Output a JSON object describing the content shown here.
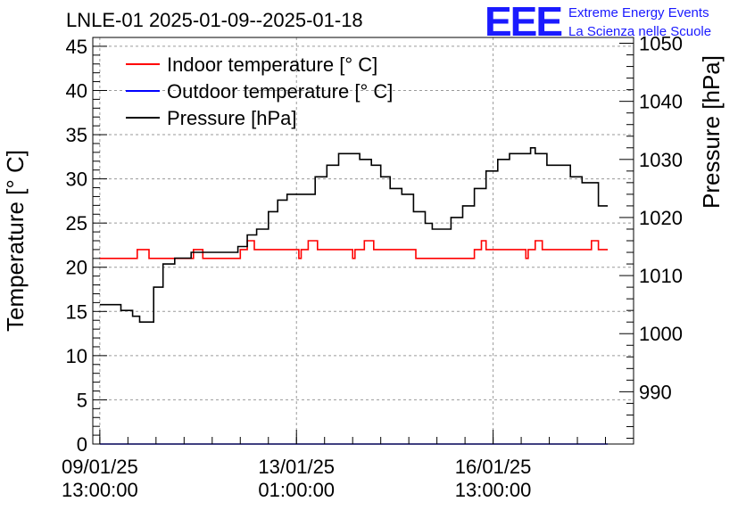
{
  "chart_data": {
    "type": "line",
    "title": "LNLE-01 2025-01-09--2025-01-18",
    "ylabel": "Temperature [° C]",
    "y2label": "Pressure [hPa]",
    "xlabel": "",
    "ylim": [
      0,
      46
    ],
    "y2lim": [
      981,
      1051
    ],
    "xlim": [
      "2025-01-09 10:00",
      "2025-01-19 01:00"
    ],
    "yticks": [
      0,
      5,
      10,
      15,
      20,
      25,
      30,
      35,
      40,
      45
    ],
    "y2ticks": [
      990,
      1000,
      1010,
      1020,
      1030,
      1040,
      1050
    ],
    "xticks": [
      {
        "t": "2025-01-09 13:00",
        "line1": "09/01/25",
        "line2": "13:00:00"
      },
      {
        "t": "2025-01-13 01:00",
        "line1": "13/01/25",
        "line2": "01:00:00"
      },
      {
        "t": "2025-01-16 13:00",
        "line1": "16/01/25",
        "line2": "13:00:00"
      }
    ],
    "grid": true,
    "legend_position": "top-left",
    "series": [
      {
        "name": "Indoor temperature [° C]",
        "axis": "left",
        "color": "#ff0000",
        "points": [
          [
            "2025-01-09 13:00",
            21
          ],
          [
            "2025-01-10 04:00",
            21
          ],
          [
            "2025-01-10 05:00",
            22
          ],
          [
            "2025-01-10 09:00",
            22
          ],
          [
            "2025-01-10 10:00",
            21
          ],
          [
            "2025-01-11 04:00",
            21
          ],
          [
            "2025-01-11 05:00",
            22
          ],
          [
            "2025-01-11 08:00",
            22
          ],
          [
            "2025-01-11 09:00",
            21
          ],
          [
            "2025-01-12 00:00",
            21
          ],
          [
            "2025-01-12 01:00",
            22
          ],
          [
            "2025-01-12 03:00",
            22
          ],
          [
            "2025-01-12 04:00",
            23
          ],
          [
            "2025-01-12 06:00",
            23
          ],
          [
            "2025-01-12 07:00",
            22
          ],
          [
            "2025-01-13 01:00",
            22
          ],
          [
            "2025-01-13 02:00",
            21
          ],
          [
            "2025-01-13 03:00",
            22
          ],
          [
            "2025-01-13 05:00",
            22
          ],
          [
            "2025-01-13 06:00",
            23
          ],
          [
            "2025-01-13 09:00",
            23
          ],
          [
            "2025-01-13 10:00",
            22
          ],
          [
            "2025-01-14 00:00",
            22
          ],
          [
            "2025-01-14 01:00",
            21
          ],
          [
            "2025-01-14 02:00",
            22
          ],
          [
            "2025-01-14 05:00",
            22
          ],
          [
            "2025-01-14 06:00",
            23
          ],
          [
            "2025-01-14 09:00",
            23
          ],
          [
            "2025-01-14 10:00",
            22
          ],
          [
            "2025-01-15 03:00",
            22
          ],
          [
            "2025-01-15 04:00",
            21
          ],
          [
            "2025-01-16 04:00",
            21
          ],
          [
            "2025-01-16 05:00",
            22
          ],
          [
            "2025-01-16 07:00",
            22
          ],
          [
            "2025-01-16 08:00",
            23
          ],
          [
            "2025-01-16 09:00",
            23
          ],
          [
            "2025-01-16 10:00",
            22
          ],
          [
            "2025-01-17 02:00",
            22
          ],
          [
            "2025-01-17 03:00",
            21
          ],
          [
            "2025-01-17 04:00",
            22
          ],
          [
            "2025-01-17 06:00",
            22
          ],
          [
            "2025-01-17 07:00",
            23
          ],
          [
            "2025-01-17 09:00",
            23
          ],
          [
            "2025-01-17 10:00",
            22
          ],
          [
            "2025-01-18 06:00",
            22
          ],
          [
            "2025-01-18 07:00",
            23
          ],
          [
            "2025-01-18 09:00",
            23
          ],
          [
            "2025-01-18 10:00",
            22
          ],
          [
            "2025-01-18 14:00",
            22
          ]
        ]
      },
      {
        "name": "Outdoor temperature [° C]",
        "axis": "left",
        "color": "#0000ff",
        "points": [
          [
            "2025-01-09 13:00",
            0
          ],
          [
            "2025-01-18 14:00",
            0
          ]
        ]
      },
      {
        "name": "Pressure [hPa]",
        "axis": "right",
        "color": "#000000",
        "points": [
          [
            "2025-01-09 13:00",
            1005
          ],
          [
            "2025-01-09 17:00",
            1005
          ],
          [
            "2025-01-09 22:00",
            1004
          ],
          [
            "2025-01-10 03:00",
            1003
          ],
          [
            "2025-01-10 06:00",
            1002
          ],
          [
            "2025-01-10 12:00",
            1008
          ],
          [
            "2025-01-10 16:00",
            1012
          ],
          [
            "2025-01-10 21:00",
            1013
          ],
          [
            "2025-01-11 04:00",
            1014
          ],
          [
            "2025-01-11 09:00",
            1014
          ],
          [
            "2025-01-11 17:00",
            1014
          ],
          [
            "2025-01-12 00:00",
            1015
          ],
          [
            "2025-01-12 04:00",
            1017
          ],
          [
            "2025-01-12 08:00",
            1018
          ],
          [
            "2025-01-12 13:00",
            1021
          ],
          [
            "2025-01-12 17:00",
            1023
          ],
          [
            "2025-01-12 21:00",
            1024
          ],
          [
            "2025-01-13 04:00",
            1024
          ],
          [
            "2025-01-13 09:00",
            1027
          ],
          [
            "2025-01-13 14:00",
            1029
          ],
          [
            "2025-01-13 19:00",
            1031
          ],
          [
            "2025-01-14 00:00",
            1031
          ],
          [
            "2025-01-14 04:00",
            1030
          ],
          [
            "2025-01-14 09:00",
            1029
          ],
          [
            "2025-01-14 13:00",
            1027
          ],
          [
            "2025-01-14 17:00",
            1025
          ],
          [
            "2025-01-14 22:00",
            1024
          ],
          [
            "2025-01-15 03:00",
            1021
          ],
          [
            "2025-01-15 08:00",
            1019
          ],
          [
            "2025-01-15 11:00",
            1018
          ],
          [
            "2025-01-15 14:00",
            1018
          ],
          [
            "2025-01-15 19:00",
            1020
          ],
          [
            "2025-01-16 00:00",
            1022
          ],
          [
            "2025-01-16 05:00",
            1025
          ],
          [
            "2025-01-16 10:00",
            1028
          ],
          [
            "2025-01-16 15:00",
            1030
          ],
          [
            "2025-01-16 20:00",
            1031
          ],
          [
            "2025-01-17 01:00",
            1031
          ],
          [
            "2025-01-17 05:00",
            1032
          ],
          [
            "2025-01-17 07:00",
            1031
          ],
          [
            "2025-01-17 12:00",
            1029
          ],
          [
            "2025-01-17 17:00",
            1029
          ],
          [
            "2025-01-17 22:00",
            1027
          ],
          [
            "2025-01-18 03:00",
            1026
          ],
          [
            "2025-01-18 07:00",
            1026
          ],
          [
            "2025-01-18 10:00",
            1022
          ],
          [
            "2025-01-18 14:00",
            1022
          ]
        ]
      }
    ]
  },
  "logo": {
    "mark": "EEE",
    "line1": "Extreme Energy Events",
    "line2": "La Scienza nelle Scuole"
  }
}
